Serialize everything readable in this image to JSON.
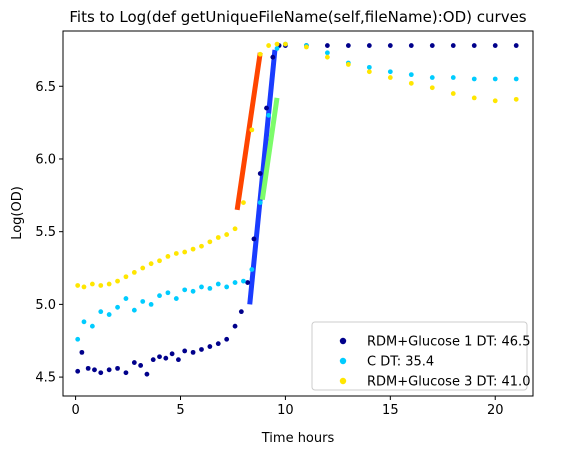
{
  "chart_data": {
    "type": "scatter",
    "title": "Fits to Log(def getUniqueFileName(self,fileName):OD) curves",
    "xlabel": "Time hours",
    "ylabel": "Log(OD)",
    "xlim": [
      -0.6,
      21.8
    ],
    "ylim": [
      4.37,
      6.88
    ],
    "xticks": [
      0,
      5,
      10,
      15,
      20
    ],
    "yticks": [
      4.5,
      5.0,
      5.5,
      6.0,
      6.5
    ],
    "ytick_labels": [
      "4.5",
      "5.0",
      "5.5",
      "6.0",
      "6.5"
    ],
    "grid": false,
    "legend_position": "bottom-right",
    "series": [
      {
        "name": "RDM+Glucose 1 DT: 46.5",
        "color": "#00008b",
        "points": [
          [
            0.1,
            4.54
          ],
          [
            0.3,
            4.67
          ],
          [
            0.6,
            4.56
          ],
          [
            0.9,
            4.55
          ],
          [
            1.2,
            4.53
          ],
          [
            1.6,
            4.55
          ],
          [
            2.0,
            4.56
          ],
          [
            2.4,
            4.53
          ],
          [
            2.8,
            4.6
          ],
          [
            3.1,
            4.58
          ],
          [
            3.4,
            4.52
          ],
          [
            3.7,
            4.62
          ],
          [
            4.0,
            4.64
          ],
          [
            4.3,
            4.63
          ],
          [
            4.6,
            4.66
          ],
          [
            4.9,
            4.62
          ],
          [
            5.2,
            4.68
          ],
          [
            5.6,
            4.67
          ],
          [
            6.0,
            4.69
          ],
          [
            6.4,
            4.71
          ],
          [
            6.8,
            4.73
          ],
          [
            7.2,
            4.76
          ],
          [
            7.6,
            4.85
          ],
          [
            7.9,
            4.95
          ],
          [
            8.2,
            5.15
          ],
          [
            8.5,
            5.45
          ],
          [
            8.8,
            5.9
          ],
          [
            9.1,
            6.35
          ],
          [
            9.4,
            6.7
          ],
          [
            9.7,
            6.78
          ],
          [
            10.0,
            6.78
          ],
          [
            11.0,
            6.78
          ],
          [
            12.0,
            6.78
          ],
          [
            13.0,
            6.78
          ],
          [
            14.0,
            6.78
          ],
          [
            15.0,
            6.78
          ],
          [
            16.0,
            6.78
          ],
          [
            17.0,
            6.78
          ],
          [
            18.0,
            6.78
          ],
          [
            19.0,
            6.78
          ],
          [
            20.0,
            6.78
          ],
          [
            21.0,
            6.78
          ]
        ]
      },
      {
        "name": "C DT: 35.4",
        "color": "#00ccff",
        "points": [
          [
            0.1,
            4.76
          ],
          [
            0.4,
            4.88
          ],
          [
            0.8,
            4.85
          ],
          [
            1.2,
            4.95
          ],
          [
            1.6,
            4.93
          ],
          [
            2.0,
            4.98
          ],
          [
            2.4,
            5.04
          ],
          [
            2.8,
            4.96
          ],
          [
            3.2,
            5.02
          ],
          [
            3.6,
            5.0
          ],
          [
            4.0,
            5.06
          ],
          [
            4.4,
            5.08
          ],
          [
            4.8,
            5.04
          ],
          [
            5.2,
            5.1
          ],
          [
            5.6,
            5.09
          ],
          [
            6.0,
            5.12
          ],
          [
            6.4,
            5.11
          ],
          [
            6.8,
            5.14
          ],
          [
            7.2,
            5.12
          ],
          [
            7.6,
            5.15
          ],
          [
            8.0,
            5.16
          ],
          [
            8.4,
            5.24
          ],
          [
            8.8,
            5.7
          ],
          [
            9.2,
            6.3
          ],
          [
            9.6,
            6.76
          ],
          [
            10.0,
            6.79
          ],
          [
            11.0,
            6.78
          ],
          [
            12.0,
            6.73
          ],
          [
            13.0,
            6.66
          ],
          [
            14.0,
            6.63
          ],
          [
            15.0,
            6.6
          ],
          [
            16.0,
            6.58
          ],
          [
            17.0,
            6.56
          ],
          [
            18.0,
            6.56
          ],
          [
            19.0,
            6.55
          ],
          [
            20.0,
            6.55
          ],
          [
            21.0,
            6.55
          ]
        ]
      },
      {
        "name": "RDM+Glucose 3 DT: 41.0",
        "color": "#ffe600",
        "points": [
          [
            0.1,
            5.13
          ],
          [
            0.4,
            5.12
          ],
          [
            0.8,
            5.14
          ],
          [
            1.2,
            5.13
          ],
          [
            1.6,
            5.14
          ],
          [
            2.0,
            5.16
          ],
          [
            2.4,
            5.19
          ],
          [
            2.8,
            5.22
          ],
          [
            3.2,
            5.25
          ],
          [
            3.6,
            5.28
          ],
          [
            4.0,
            5.3
          ],
          [
            4.4,
            5.33
          ],
          [
            4.8,
            5.35
          ],
          [
            5.2,
            5.36
          ],
          [
            5.6,
            5.38
          ],
          [
            6.0,
            5.4
          ],
          [
            6.4,
            5.43
          ],
          [
            6.8,
            5.46
          ],
          [
            7.2,
            5.48
          ],
          [
            7.6,
            5.52
          ],
          [
            8.0,
            5.7
          ],
          [
            8.4,
            6.2
          ],
          [
            8.8,
            6.72
          ],
          [
            9.2,
            6.78
          ],
          [
            9.6,
            6.79
          ],
          [
            10.0,
            6.79
          ],
          [
            11.0,
            6.77
          ],
          [
            12.0,
            6.7
          ],
          [
            13.0,
            6.65
          ],
          [
            14.0,
            6.6
          ],
          [
            15.0,
            6.56
          ],
          [
            16.0,
            6.52
          ],
          [
            17.0,
            6.49
          ],
          [
            18.0,
            6.45
          ],
          [
            19.0,
            6.42
          ],
          [
            20.0,
            6.4
          ],
          [
            21.0,
            6.41
          ]
        ]
      }
    ],
    "fits": [
      {
        "color": "#ff4500",
        "x": [
          7.7,
          8.8
        ],
        "y": [
          5.65,
          6.73
        ]
      },
      {
        "color": "#1a3cff",
        "x": [
          8.3,
          9.5
        ],
        "y": [
          5.0,
          6.75
        ]
      },
      {
        "color": "#7cfc6a",
        "x": [
          8.9,
          9.6
        ],
        "y": [
          5.72,
          6.42
        ]
      }
    ]
  }
}
